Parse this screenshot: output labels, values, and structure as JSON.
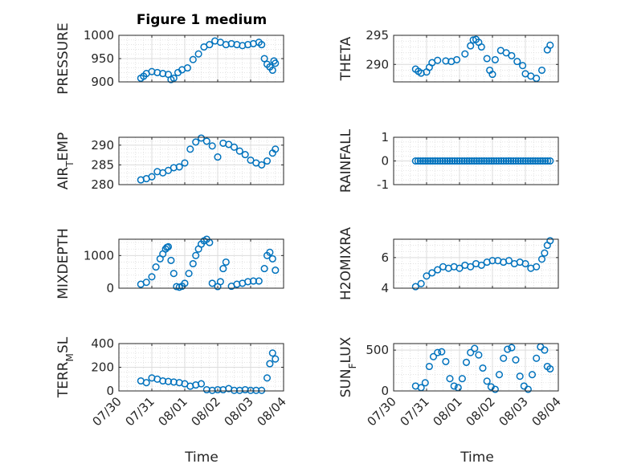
{
  "figure": {
    "title": "Figure 1 medium",
    "xlabel": "Time",
    "marker_color": "#0072bd"
  },
  "chart_data": [
    {
      "type": "scatter",
      "id": "pressure",
      "ylabel_parts": [
        [
          "PRESSURE",
          null
        ]
      ],
      "ylim": [
        900,
        1000
      ],
      "yticks": [
        900,
        950,
        1000
      ],
      "xlim": [
        "07/30",
        "08/04"
      ],
      "xticks": [
        "07/30",
        "07/31",
        "08/01",
        "08/02",
        "08/03",
        "08/04"
      ],
      "grid": true,
      "title": "Figure 1 medium",
      "x": [
        "07/30 16:00",
        "07/30 18:00",
        "07/30 20:00",
        "07/31 00:00",
        "07/31 04:00",
        "07/31 08:00",
        "07/31 12:00",
        "07/31 14:00",
        "07/31 16:00",
        "07/31 19:00",
        "07/31 22:00",
        "08/01 02:00",
        "08/01 06:00",
        "08/01 10:00",
        "08/01 14:00",
        "08/01 18:00",
        "08/01 22:00",
        "08/02 02:00",
        "08/02 06:00",
        "08/02 10:00",
        "08/02 14:00",
        "08/02 18:00",
        "08/02 22:00",
        "08/03 02:00",
        "08/03 06:00",
        "08/03 08:00",
        "08/03 10:00",
        "08/03 12:00",
        "08/03 14:00",
        "08/03 16:00",
        "08/03 17:00",
        "08/03 18:00"
      ],
      "y": [
        908,
        912,
        918,
        922,
        920,
        918,
        916,
        905,
        908,
        920,
        926,
        930,
        948,
        960,
        975,
        980,
        988,
        985,
        980,
        982,
        980,
        978,
        980,
        982,
        985,
        980,
        950,
        938,
        932,
        925,
        945,
        940
      ]
    },
    {
      "type": "scatter",
      "id": "theta",
      "ylabel_parts": [
        [
          "THETA",
          null
        ]
      ],
      "ylim": [
        287,
        295
      ],
      "yticks": [
        290,
        295
      ],
      "xlim": [
        "07/30",
        "08/04"
      ],
      "xticks": [
        "07/30",
        "07/31",
        "08/01",
        "08/02",
        "08/03",
        "08/04"
      ],
      "grid": true,
      "x": [
        "07/30 16:00",
        "07/30 18:00",
        "07/30 20:00",
        "07/31 00:00",
        "07/31 02:00",
        "07/31 04:00",
        "07/31 08:00",
        "07/31 14:00",
        "07/31 18:00",
        "07/31 22:00",
        "08/01 04:00",
        "08/01 08:00",
        "08/01 10:00",
        "08/01 12:00",
        "08/01 14:00",
        "08/01 16:00",
        "08/01 20:00",
        "08/01 22:00",
        "08/02 00:00",
        "08/02 02:00",
        "08/02 06:00",
        "08/02 10:00",
        "08/02 14:00",
        "08/02 18:00",
        "08/02 22:00",
        "08/03 00:00",
        "08/03 04:00",
        "08/03 08:00",
        "08/03 12:00",
        "08/03 16:00",
        "08/03 18:00"
      ],
      "y": [
        289.2,
        288.8,
        288.5,
        288.7,
        289.5,
        290.3,
        290.7,
        290.6,
        290.5,
        290.8,
        291.8,
        293.2,
        294.2,
        294.3,
        293.8,
        293.0,
        291.0,
        289.0,
        288.3,
        290.8,
        292.4,
        292.0,
        291.5,
        290.5,
        289.8,
        288.4,
        288.0,
        287.6,
        289.0,
        292.5,
        293.3
      ]
    },
    {
      "type": "scatter",
      "id": "air_temp",
      "ylabel_parts": [
        [
          "AIR",
          null
        ],
        [
          "T",
          "sub"
        ],
        [
          "EMP",
          null
        ]
      ],
      "ylim": [
        280,
        292
      ],
      "yticks": [
        280,
        285,
        290
      ],
      "xlim": [
        "07/30",
        "08/04"
      ],
      "xticks": [
        "07/30",
        "07/31",
        "08/01",
        "08/02",
        "08/03",
        "08/04"
      ],
      "grid": true,
      "x": [
        "07/30 16:00",
        "07/30 20:00",
        "07/31 00:00",
        "07/31 04:00",
        "07/31 08:00",
        "07/31 12:00",
        "07/31 16:00",
        "07/31 20:00",
        "08/01 00:00",
        "08/01 04:00",
        "08/01 08:00",
        "08/01 12:00",
        "08/01 16:00",
        "08/01 20:00",
        "08/02 00:00",
        "08/02 04:00",
        "08/02 08:00",
        "08/02 12:00",
        "08/02 16:00",
        "08/02 20:00",
        "08/03 00:00",
        "08/03 04:00",
        "08/03 08:00",
        "08/03 12:00",
        "08/03 16:00",
        "08/03 18:00"
      ],
      "y": [
        281.2,
        281.5,
        282.0,
        283.3,
        283.0,
        283.6,
        284.3,
        284.5,
        285.5,
        289.0,
        290.8,
        291.8,
        291.0,
        289.8,
        287.0,
        290.5,
        290.2,
        289.5,
        288.5,
        287.6,
        286.2,
        285.5,
        285.0,
        286.0,
        288.0,
        289.0
      ]
    },
    {
      "type": "scatter",
      "id": "rainfall",
      "ylabel_parts": [
        [
          "RAINFALL",
          null
        ]
      ],
      "ylim": [
        -1,
        1
      ],
      "yticks": [
        -1,
        0,
        1
      ],
      "xlim": [
        "07/30",
        "08/04"
      ],
      "xticks": [
        "07/30",
        "07/31",
        "08/01",
        "08/02",
        "08/03",
        "08/04"
      ],
      "grid": true,
      "x_range": [
        "07/30 16:00",
        "08/03 18:00"
      ],
      "y_constant": 0
    },
    {
      "type": "scatter",
      "id": "mixdepth",
      "ylabel_parts": [
        [
          "MIXDEPTH",
          null
        ]
      ],
      "ylim": [
        0,
        1500
      ],
      "yticks": [
        0,
        1000
      ],
      "xlim": [
        "07/30",
        "08/04"
      ],
      "xticks": [
        "07/30",
        "07/31",
        "08/01",
        "08/02",
        "08/03",
        "08/04"
      ],
      "grid": true,
      "x": [
        "07/30 16:00",
        "07/30 20:00",
        "07/31 00:00",
        "07/31 03:00",
        "07/31 06:00",
        "07/31 08:00",
        "07/31 10:00",
        "07/31 11:00",
        "07/31 12:00",
        "07/31 14:00",
        "07/31 16:00",
        "07/31 18:00",
        "07/31 20:00",
        "07/31 22:00",
        "08/01 00:00",
        "08/01 03:00",
        "08/01 06:00",
        "08/01 08:00",
        "08/01 10:00",
        "08/01 12:00",
        "08/01 14:00",
        "08/01 16:00",
        "08/01 18:00",
        "08/01 20:00",
        "08/02 00:00",
        "08/02 02:00",
        "08/02 04:00",
        "08/02 06:00",
        "08/02 10:00",
        "08/02 14:00",
        "08/02 18:00",
        "08/02 22:00",
        "08/03 02:00",
        "08/03 06:00",
        "08/03 10:00",
        "08/03 12:00",
        "08/03 14:00",
        "08/03 16:00",
        "08/03 18:00"
      ],
      "y": [
        120,
        180,
        350,
        650,
        900,
        1050,
        1200,
        1250,
        1270,
        850,
        450,
        50,
        30,
        60,
        150,
        450,
        750,
        1000,
        1200,
        1350,
        1450,
        1500,
        1400,
        150,
        50,
        200,
        600,
        800,
        60,
        120,
        150,
        200,
        220,
        220,
        600,
        1000,
        1100,
        900,
        550
      ]
    },
    {
      "type": "scatter",
      "id": "h2omixra",
      "ylabel_parts": [
        [
          "H2OMIXRA",
          null
        ]
      ],
      "ylim": [
        4,
        7.2
      ],
      "yticks": [
        4,
        6
      ],
      "xlim": [
        "07/30",
        "08/04"
      ],
      "xticks": [
        "07/30",
        "07/31",
        "08/01",
        "08/02",
        "08/03",
        "08/04"
      ],
      "grid": true,
      "x": [
        "07/30 16:00",
        "07/30 20:00",
        "07/31 00:00",
        "07/31 04:00",
        "07/31 08:00",
        "07/31 12:00",
        "07/31 16:00",
        "07/31 20:00",
        "08/01 00:00",
        "08/01 04:00",
        "08/01 08:00",
        "08/01 12:00",
        "08/01 16:00",
        "08/01 20:00",
        "08/02 00:00",
        "08/02 04:00",
        "08/02 08:00",
        "08/02 12:00",
        "08/02 16:00",
        "08/02 20:00",
        "08/03 00:00",
        "08/03 04:00",
        "08/03 08:00",
        "08/03 12:00",
        "08/03 14:00",
        "08/03 16:00",
        "08/03 18:00"
      ],
      "y": [
        4.1,
        4.3,
        4.8,
        5.0,
        5.2,
        5.4,
        5.3,
        5.4,
        5.3,
        5.5,
        5.4,
        5.6,
        5.5,
        5.7,
        5.8,
        5.8,
        5.7,
        5.8,
        5.6,
        5.7,
        5.6,
        5.3,
        5.4,
        5.9,
        6.3,
        6.8,
        7.1
      ]
    },
    {
      "type": "scatter",
      "id": "terr_msl",
      "ylabel_parts": [
        [
          "TERR",
          null
        ],
        [
          "M",
          "sub"
        ],
        [
          "SL",
          null
        ]
      ],
      "ylim": [
        0,
        400
      ],
      "yticks": [
        0,
        200,
        400
      ],
      "xlim": [
        "07/30",
        "08/04"
      ],
      "xticks": [
        "07/30",
        "07/31",
        "08/01",
        "08/02",
        "08/03",
        "08/04"
      ],
      "grid": true,
      "x": [
        "07/30 16:00",
        "07/30 20:00",
        "07/31 00:00",
        "07/31 04:00",
        "07/31 08:00",
        "07/31 12:00",
        "07/31 16:00",
        "07/31 20:00",
        "08/01 00:00",
        "08/01 04:00",
        "08/01 08:00",
        "08/01 12:00",
        "08/01 16:00",
        "08/01 20:00",
        "08/02 00:00",
        "08/02 04:00",
        "08/02 08:00",
        "08/02 12:00",
        "08/02 16:00",
        "08/02 20:00",
        "08/03 00:00",
        "08/03 04:00",
        "08/03 08:00",
        "08/03 12:00",
        "08/03 14:00",
        "08/03 16:00",
        "08/03 18:00"
      ],
      "y": [
        85,
        70,
        110,
        100,
        85,
        80,
        75,
        70,
        60,
        40,
        50,
        60,
        10,
        5,
        10,
        10,
        20,
        5,
        5,
        10,
        5,
        5,
        5,
        110,
        230,
        320,
        270
      ]
    },
    {
      "type": "scatter",
      "id": "sun_flux",
      "ylabel_parts": [
        [
          "SUN",
          null
        ],
        [
          "F",
          "sub"
        ],
        [
          "LUX",
          null
        ]
      ],
      "ylim": [
        0,
        580
      ],
      "yticks": [
        0,
        500
      ],
      "xlim": [
        "07/30",
        "08/04"
      ],
      "xticks": [
        "07/30",
        "07/31",
        "08/01",
        "08/02",
        "08/03",
        "08/04"
      ],
      "grid": true,
      "x": [
        "07/30 16:00",
        "07/30 20:00",
        "07/30 23:00",
        "07/31 02:00",
        "07/31 05:00",
        "07/31 08:00",
        "07/31 11:00",
        "07/31 14:00",
        "07/31 17:00",
        "07/31 20:00",
        "07/31 23:00",
        "08/01 02:00",
        "08/01 05:00",
        "08/01 08:00",
        "08/01 11:00",
        "08/01 14:00",
        "08/01 17:00",
        "08/01 20:00",
        "08/01 23:00",
        "08/02 02:00",
        "08/02 05:00",
        "08/02 08:00",
        "08/02 11:00",
        "08/02 14:00",
        "08/02 17:00",
        "08/02 20:00",
        "08/02 23:00",
        "08/03 02:00",
        "08/03 05:00",
        "08/03 08:00",
        "08/03 11:00",
        "08/03 14:00",
        "08/03 16:00",
        "08/03 18:00"
      ],
      "y": [
        60,
        40,
        100,
        300,
        420,
        470,
        480,
        360,
        150,
        60,
        40,
        150,
        350,
        470,
        520,
        440,
        280,
        120,
        50,
        20,
        200,
        400,
        510,
        530,
        380,
        180,
        60,
        20,
        200,
        400,
        540,
        500,
        300,
        270
      ]
    }
  ]
}
